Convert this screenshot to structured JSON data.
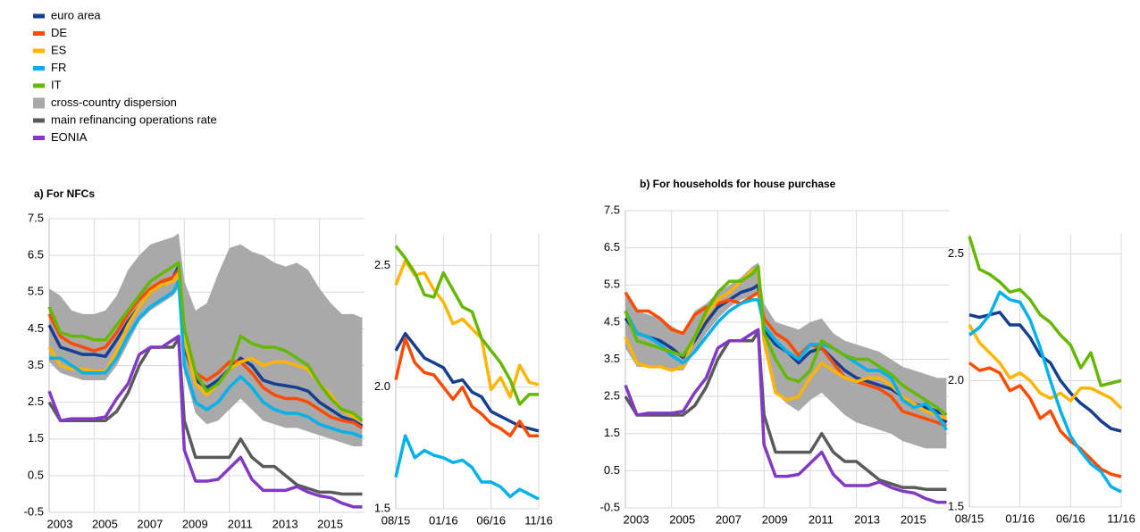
{
  "chart_data": [
    {
      "type": "line",
      "title": "a) For NFCs",
      "legend": "top-left",
      "grid": true,
      "x": [
        2003,
        2003.5,
        2004,
        2004.5,
        2005,
        2005.5,
        2006,
        2006.5,
        2007,
        2007.5,
        2008,
        2008.5,
        2008.75,
        2009,
        2009.5,
        2010,
        2010.5,
        2011,
        2011.5,
        2012,
        2012.5,
        2013,
        2013.5,
        2014,
        2014.5,
        2015,
        2015.5,
        2016,
        2016.5,
        2016.9
      ],
      "xlim": [
        2003,
        2017
      ],
      "xticks": [
        2003,
        2005,
        2007,
        2009,
        2011,
        2013,
        2015
      ],
      "ylim": [
        -0.5,
        7.5
      ],
      "yticks": [
        -0.5,
        0.5,
        1.5,
        2.5,
        3.5,
        4.5,
        5.5,
        6.5,
        7.5
      ],
      "series": [
        {
          "name": "euro area",
          "color": "#173f8f",
          "values": [
            4.6,
            4.0,
            3.9,
            3.8,
            3.8,
            3.75,
            4.2,
            4.7,
            5.1,
            5.5,
            5.7,
            5.9,
            6.2,
            4.0,
            3.1,
            2.9,
            3.1,
            3.4,
            3.7,
            3.5,
            3.1,
            3.0,
            2.95,
            2.9,
            2.8,
            2.5,
            2.3,
            2.1,
            2.0,
            1.85
          ]
        },
        {
          "name": "DE",
          "color": "#ff4b00",
          "values": [
            4.9,
            4.3,
            4.1,
            4.0,
            3.9,
            4.0,
            4.4,
            4.9,
            5.3,
            5.6,
            5.8,
            5.9,
            6.1,
            4.5,
            3.3,
            3.1,
            3.3,
            3.6,
            3.6,
            3.3,
            2.9,
            2.7,
            2.6,
            2.6,
            2.5,
            2.3,
            2.1,
            2.0,
            1.95,
            1.8
          ]
        },
        {
          "name": "ES",
          "color": "#ffb400",
          "values": [
            4.0,
            3.5,
            3.4,
            3.4,
            3.35,
            3.35,
            3.9,
            4.6,
            5.1,
            5.5,
            5.7,
            5.8,
            6.0,
            4.2,
            3.0,
            2.7,
            3.0,
            3.4,
            3.6,
            3.7,
            3.5,
            3.6,
            3.6,
            3.5,
            3.4,
            3.0,
            2.7,
            2.3,
            2.1,
            2.0
          ]
        },
        {
          "name": "FR",
          "color": "#00b1ea",
          "values": [
            3.7,
            3.7,
            3.5,
            3.3,
            3.3,
            3.3,
            3.7,
            4.3,
            4.8,
            5.1,
            5.3,
            5.5,
            5.8,
            3.5,
            2.5,
            2.3,
            2.5,
            2.9,
            3.2,
            2.9,
            2.5,
            2.3,
            2.2,
            2.2,
            2.1,
            1.9,
            1.8,
            1.7,
            1.65,
            1.55
          ]
        },
        {
          "name": "IT",
          "color": "#65b800",
          "values": [
            5.1,
            4.4,
            4.3,
            4.3,
            4.2,
            4.2,
            4.6,
            5.0,
            5.4,
            5.8,
            6.0,
            6.2,
            6.3,
            4.5,
            3.3,
            2.8,
            3.0,
            3.4,
            4.3,
            4.1,
            4.0,
            4.0,
            3.9,
            3.7,
            3.5,
            3.0,
            2.6,
            2.3,
            2.2,
            2.0
          ]
        },
        {
          "name": "cross-country dispersion",
          "color": "#a9a9a9",
          "type": "band",
          "low": [
            3.6,
            3.3,
            3.2,
            3.1,
            3.1,
            3.1,
            3.5,
            4.1,
            4.7,
            5.0,
            5.2,
            5.4,
            5.6,
            3.3,
            2.2,
            1.9,
            2.0,
            2.3,
            2.6,
            2.3,
            2.0,
            1.9,
            1.8,
            1.8,
            1.7,
            1.6,
            1.5,
            1.4,
            1.3,
            1.3
          ],
          "high": [
            5.6,
            5.4,
            5.0,
            4.9,
            4.9,
            5.0,
            5.4,
            6.1,
            6.5,
            6.8,
            6.9,
            7.0,
            7.1,
            5.8,
            5.0,
            5.2,
            6.0,
            6.7,
            6.8,
            6.6,
            6.5,
            6.3,
            6.2,
            6.3,
            6.1,
            5.6,
            5.2,
            4.9,
            4.9,
            4.8
          ]
        },
        {
          "name": "main refinancing operations rate",
          "color": "#5a5a5a",
          "values": [
            2.5,
            2.0,
            2.0,
            2.0,
            2.0,
            2.0,
            2.25,
            2.75,
            3.5,
            4.0,
            4.0,
            4.0,
            4.25,
            2.0,
            1.0,
            1.0,
            1.0,
            1.0,
            1.5,
            1.0,
            0.75,
            0.75,
            0.5,
            0.25,
            0.15,
            0.05,
            0.05,
            0.0,
            0.0,
            0.0
          ]
        },
        {
          "name": "EONIA",
          "color": "#8139c6",
          "values": [
            2.8,
            2.0,
            2.05,
            2.05,
            2.05,
            2.1,
            2.6,
            3.0,
            3.8,
            4.0,
            4.0,
            4.2,
            4.3,
            1.2,
            0.35,
            0.35,
            0.4,
            0.7,
            1.0,
            0.4,
            0.1,
            0.1,
            0.1,
            0.2,
            0.05,
            -0.05,
            -0.1,
            -0.25,
            -0.35,
            -0.35
          ]
        }
      ]
    },
    {
      "type": "line",
      "grid": true,
      "categories": [
        "08/15",
        null,
        null,
        null,
        null,
        "01/16",
        null,
        null,
        null,
        null,
        "06/16",
        null,
        null,
        null,
        null,
        "11/16"
      ],
      "ylim": [
        1.5,
        2.63
      ],
      "yticks": [
        1.5,
        {
          "value": 2,
          "label": "2.0"
        },
        2.5
      ],
      "series": [
        {
          "color": "#173f8f",
          "values": [
            2.15,
            2.22,
            2.17,
            2.12,
            2.1,
            2.08,
            2.02,
            2.03,
            1.98,
            1.96,
            1.9,
            1.88,
            1.86,
            1.84,
            1.83,
            1.82
          ]
        },
        {
          "color": "#ff4b00",
          "values": [
            2.03,
            2.2,
            2.1,
            2.06,
            2.05,
            2.0,
            1.95,
            2.0,
            1.92,
            1.89,
            1.85,
            1.83,
            1.8,
            1.86,
            1.8,
            1.8
          ]
        },
        {
          "color": "#ffb400",
          "values": [
            2.42,
            2.52,
            2.46,
            2.47,
            2.4,
            2.35,
            2.26,
            2.28,
            2.24,
            2.2,
            1.99,
            2.04,
            1.96,
            2.09,
            2.02,
            2.01
          ]
        },
        {
          "color": "#00b1ea",
          "values": [
            1.63,
            1.8,
            1.71,
            1.74,
            1.72,
            1.71,
            1.69,
            1.7,
            1.67,
            1.61,
            1.61,
            1.59,
            1.55,
            1.58,
            1.56,
            1.54
          ]
        },
        {
          "color": "#65b800",
          "values": [
            2.58,
            2.53,
            2.47,
            2.38,
            2.37,
            2.47,
            2.4,
            2.33,
            2.31,
            2.2,
            2.15,
            2.1,
            2.03,
            1.93,
            1.97,
            1.97
          ]
        }
      ]
    },
    {
      "type": "line",
      "title": "b) For households for house purchase",
      "grid": true,
      "x": [
        2003,
        2003.5,
        2004,
        2004.5,
        2005,
        2005.5,
        2006,
        2006.5,
        2007,
        2007.5,
        2008,
        2008.5,
        2008.75,
        2009,
        2009.5,
        2010,
        2010.5,
        2011,
        2011.5,
        2012,
        2012.5,
        2013,
        2013.5,
        2014,
        2014.5,
        2015,
        2015.5,
        2016,
        2016.5,
        2016.9
      ],
      "xlim": [
        2003,
        2017
      ],
      "xticks": [
        2003,
        2005,
        2007,
        2009,
        2011,
        2013,
        2015
      ],
      "ylim": [
        -0.5,
        7.5
      ],
      "yticks": [
        -0.5,
        0.5,
        1.5,
        2.5,
        3.5,
        4.5,
        5.5,
        6.5,
        7.5
      ],
      "series": [
        {
          "color": "#173f8f",
          "values": [
            4.6,
            4.2,
            4.1,
            4.0,
            3.8,
            3.55,
            4.0,
            4.5,
            4.9,
            5.1,
            5.3,
            5.4,
            5.5,
            4.3,
            3.9,
            3.7,
            3.4,
            3.7,
            3.8,
            3.5,
            3.2,
            3.0,
            2.9,
            2.8,
            2.7,
            2.5,
            2.3,
            2.2,
            2.1,
            1.8
          ]
        },
        {
          "color": "#ff4b00",
          "values": [
            5.3,
            4.8,
            4.8,
            4.6,
            4.3,
            4.2,
            4.7,
            4.9,
            5.0,
            5.1,
            5.0,
            5.2,
            5.3,
            4.6,
            4.2,
            4.0,
            3.6,
            3.9,
            3.8,
            3.4,
            3.0,
            2.9,
            2.8,
            2.7,
            2.5,
            2.1,
            2.0,
            1.9,
            1.8,
            1.7
          ]
        },
        {
          "color": "#ffb400",
          "values": [
            4.1,
            3.4,
            3.3,
            3.3,
            3.2,
            3.3,
            4.1,
            4.7,
            5.1,
            5.3,
            5.6,
            5.9,
            5.9,
            4.0,
            2.6,
            2.4,
            2.5,
            3.0,
            3.4,
            3.2,
            3.0,
            2.9,
            3.0,
            3.0,
            2.8,
            2.5,
            2.3,
            2.1,
            2.0,
            1.9
          ]
        },
        {
          "color": "#00b1ea",
          "values": [
            4.8,
            4.2,
            4.1,
            3.9,
            3.6,
            3.4,
            3.7,
            4.1,
            4.5,
            4.8,
            5.0,
            5.1,
            5.1,
            4.4,
            4.0,
            3.7,
            3.5,
            3.9,
            3.9,
            3.8,
            3.6,
            3.4,
            3.2,
            3.2,
            3.0,
            2.4,
            2.2,
            2.3,
            2.0,
            1.6
          ]
        },
        {
          "color": "#65b800",
          "values": [
            4.8,
            4.0,
            3.9,
            3.8,
            3.7,
            3.6,
            4.1,
            4.8,
            5.3,
            5.6,
            5.6,
            5.8,
            6.0,
            4.2,
            3.5,
            3.0,
            2.9,
            3.2,
            4.0,
            3.8,
            3.6,
            3.5,
            3.5,
            3.3,
            3.1,
            2.8,
            2.6,
            2.4,
            2.2,
            2.0
          ]
        },
        {
          "color": "#a9a9a9",
          "type": "band",
          "low": [
            3.8,
            3.3,
            3.3,
            3.3,
            3.2,
            3.2,
            3.7,
            4.2,
            4.6,
            4.9,
            5.1,
            5.2,
            5.3,
            3.8,
            2.6,
            2.3,
            2.1,
            2.4,
            2.6,
            2.3,
            2.0,
            1.8,
            1.7,
            1.6,
            1.5,
            1.3,
            1.2,
            1.1,
            1.1,
            1.1
          ],
          "high": [
            5.3,
            4.8,
            4.7,
            4.6,
            4.4,
            4.2,
            4.8,
            5.0,
            5.3,
            5.5,
            5.7,
            6.0,
            6.1,
            5.0,
            4.5,
            4.4,
            4.3,
            4.5,
            4.6,
            4.2,
            4.0,
            3.9,
            3.8,
            3.7,
            3.5,
            3.3,
            3.2,
            3.1,
            3.0,
            3.0
          ]
        },
        {
          "color": "#5a5a5a",
          "values": [
            2.5,
            2.0,
            2.0,
            2.0,
            2.0,
            2.0,
            2.25,
            2.75,
            3.5,
            4.0,
            4.0,
            4.0,
            4.25,
            2.0,
            1.0,
            1.0,
            1.0,
            1.0,
            1.5,
            1.0,
            0.75,
            0.75,
            0.5,
            0.25,
            0.15,
            0.05,
            0.05,
            0.0,
            0.0,
            0.0
          ]
        },
        {
          "color": "#8139c6",
          "values": [
            2.8,
            2.0,
            2.05,
            2.05,
            2.05,
            2.1,
            2.6,
            3.0,
            3.8,
            4.0,
            4.0,
            4.2,
            4.3,
            1.2,
            0.35,
            0.35,
            0.4,
            0.7,
            1.0,
            0.4,
            0.1,
            0.1,
            0.1,
            0.2,
            0.05,
            -0.05,
            -0.1,
            -0.25,
            -0.35,
            -0.35
          ]
        }
      ]
    },
    {
      "type": "line",
      "grid": true,
      "categories": [
        "08/15",
        null,
        null,
        null,
        null,
        "01/16",
        null,
        null,
        null,
        null,
        "06/16",
        null,
        null,
        null,
        null,
        "11/16"
      ],
      "ylim": [
        1.5,
        2.58
      ],
      "yticks": [
        1.5,
        {
          "value": 2,
          "label": "2.0"
        },
        2.5
      ],
      "series": [
        {
          "color": "#173f8f",
          "values": [
            2.26,
            2.25,
            2.26,
            2.27,
            2.22,
            2.22,
            2.17,
            2.1,
            2.07,
            2.0,
            1.95,
            1.91,
            1.88,
            1.84,
            1.81,
            1.8
          ]
        },
        {
          "color": "#ff4b00",
          "values": [
            2.07,
            2.04,
            2.05,
            2.03,
            1.96,
            1.98,
            1.93,
            1.85,
            1.88,
            1.8,
            1.76,
            1.73,
            1.69,
            1.65,
            1.63,
            1.62
          ]
        },
        {
          "color": "#ffb400",
          "values": [
            2.22,
            2.15,
            2.11,
            2.07,
            2.01,
            2.03,
            2.0,
            1.95,
            1.93,
            1.95,
            1.92,
            1.97,
            1.97,
            1.95,
            1.93,
            1.89
          ]
        },
        {
          "color": "#00b1ea",
          "values": [
            2.18,
            2.21,
            2.26,
            2.35,
            2.32,
            2.31,
            2.24,
            2.13,
            2.0,
            1.88,
            1.78,
            1.72,
            1.67,
            1.64,
            1.58,
            1.56
          ]
        },
        {
          "color": "#65b800",
          "values": [
            2.57,
            2.44,
            2.42,
            2.39,
            2.35,
            2.36,
            2.32,
            2.26,
            2.23,
            2.18,
            2.14,
            2.05,
            2.11,
            1.98,
            1.99,
            2.0
          ]
        }
      ]
    }
  ]
}
